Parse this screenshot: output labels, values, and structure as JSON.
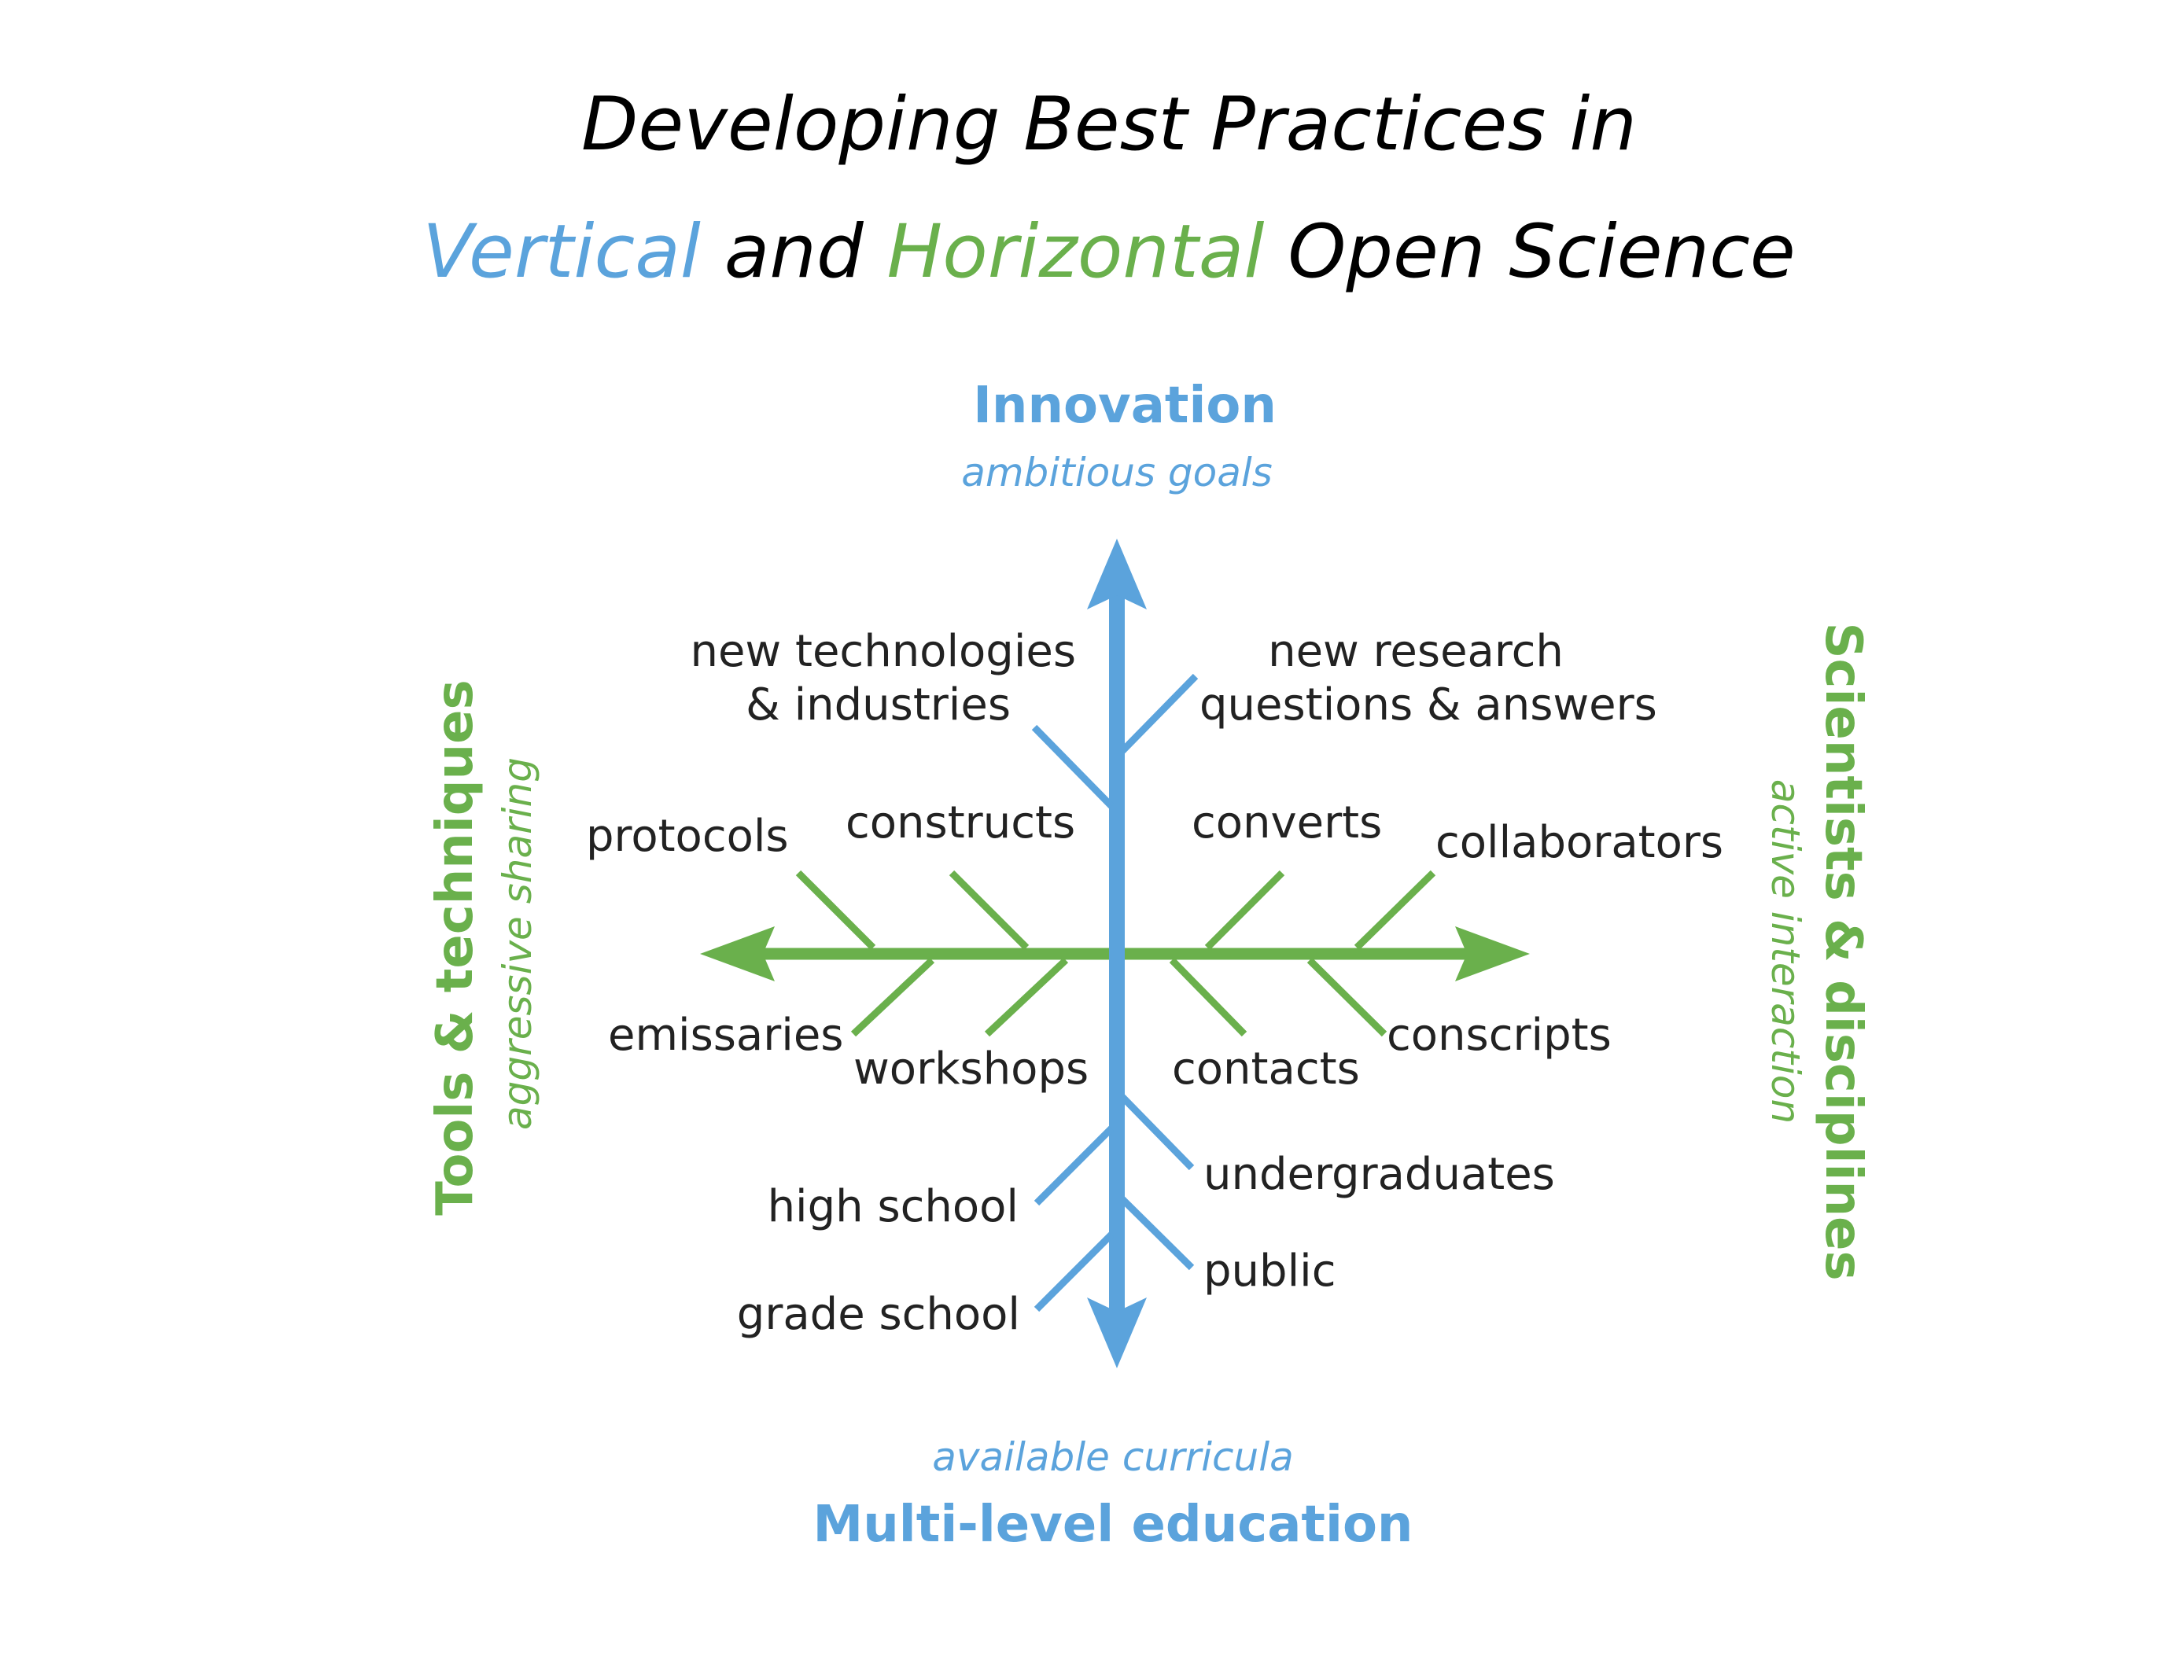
{
  "title": {
    "line1": "Developing Best Practices in",
    "line2_part1": "Vertical",
    "line2_part2": " and ",
    "line2_part3": "Horizontal",
    "line2_part4": " Open Science"
  },
  "colors": {
    "vertical": "#5ba3dc",
    "horizontal": "#6ab04c",
    "text": "#222222",
    "title": "#000000"
  },
  "axes": {
    "top": {
      "title": "Innovation",
      "subtitle": "ambitious goals"
    },
    "bottom": {
      "title": "Multi-level education",
      "subtitle": "available curricula"
    },
    "left": {
      "title": "Tools & techniques",
      "subtitle": "aggressive sharing"
    },
    "right": {
      "title": "Scientists & disciplines",
      "subtitle": "active interaction"
    }
  },
  "branches": {
    "innovation_left": [
      "new technologies",
      "& industries"
    ],
    "innovation_right": [
      "new research",
      "questions & answers"
    ],
    "tools_upper": [
      "protocols",
      "constructs"
    ],
    "tools_lower": [
      "emissaries",
      "workshops"
    ],
    "scientists_upper": [
      "converts",
      "collaborators"
    ],
    "scientists_lower": [
      "contacts",
      "conscripts"
    ],
    "education_left": [
      "high school",
      "grade school"
    ],
    "education_right": [
      "undergraduates",
      "public"
    ]
  }
}
